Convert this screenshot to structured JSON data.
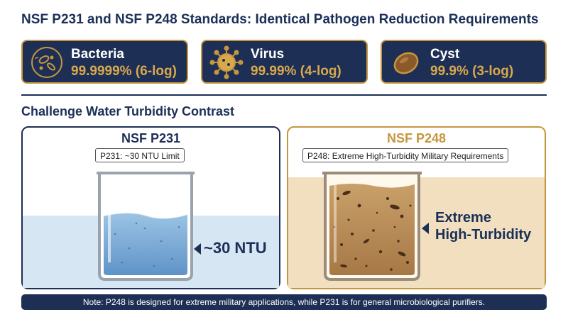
{
  "title": "NSF P231 and NSF P248 Standards: Identical Pathogen Reduction Requirements",
  "pathogens": [
    {
      "name": "Bacteria",
      "value": "99.9999% (6-log)",
      "icon": "bacteria-icon"
    },
    {
      "name": "Virus",
      "value": "99.99% (4-log)",
      "icon": "virus-icon"
    },
    {
      "name": "Cyst",
      "value": "99.9% (3-log)",
      "icon": "cyst-icon"
    }
  ],
  "section_title": "Challenge Water Turbidity Contrast",
  "p231": {
    "title": "NSF P231",
    "chip": "P231: ~30 NTU Limit",
    "label": "~30 NTU"
  },
  "p248": {
    "title": "NSF P248",
    "chip": "P248: Extreme High-Turbidity Military Requirements",
    "label_line1": "Extreme",
    "label_line2": "High-Turbidity"
  },
  "note": "Note: P248 is designed for extreme military applications, while P231 is for general microbiological purifiers.",
  "colors": {
    "navy": "#1d2f55",
    "gold": "#c6963f",
    "gold_text": "#d9a84c",
    "clear_water": "#7fb0d8",
    "turbid_water": "#b58a55",
    "sand_bg": "#f1dfc0"
  }
}
